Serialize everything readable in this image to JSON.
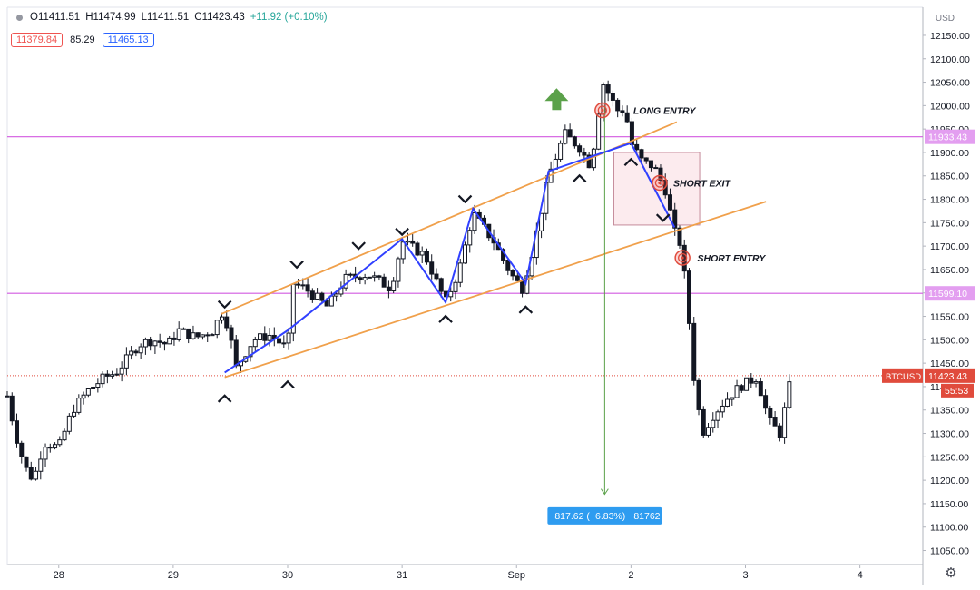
{
  "header": {
    "open": "O11411.51",
    "high": "H11474.99",
    "low": "L11411.51",
    "close": "C11423.43",
    "change": "+11.92 (+0.10%)"
  },
  "indicator": {
    "low_value": "11379.84",
    "mid_value": "85.29",
    "high_value": "11465.13"
  },
  "currency": "USD",
  "colors": {
    "up": "#26a69a",
    "down": "#ef5350",
    "candle": "#131722",
    "channel": "#f0a04b",
    "zigzag": "#3040ff",
    "level": "#d25ae0",
    "price_tag": "#e04b3c",
    "measure": "#2e9cf0",
    "arrow": "#5ba14a"
  },
  "chart_data": {
    "type": "candlestick",
    "symbol": "BTCUSD",
    "x_ticks": [
      {
        "label": "28",
        "day": 28
      },
      {
        "label": "29",
        "day": 29
      },
      {
        "label": "30",
        "day": 30
      },
      {
        "label": "31",
        "day": 31
      },
      {
        "label": "Sep",
        "day": 32
      },
      {
        "label": "2",
        "day": 33
      },
      {
        "label": "3",
        "day": 34
      },
      {
        "label": "4",
        "day": 35
      }
    ],
    "y_ticks": [
      11050,
      11100,
      11150,
      11200,
      11250,
      11300,
      11350,
      11400,
      11450,
      11500,
      11550,
      11600,
      11650,
      11700,
      11750,
      11800,
      11850,
      11900,
      11950,
      12000,
      12050,
      12100,
      12150
    ],
    "ylim": [
      11020,
      12210
    ],
    "current_price": {
      "label": "BTCUSD",
      "value": "11423.43",
      "countdown": "55:53",
      "price": 11423.43
    },
    "horizontal_levels": [
      {
        "value": "11933.43",
        "price": 11933.43
      },
      {
        "value": "11599.10",
        "price": 11599.1
      }
    ],
    "price_path": [
      [
        27.55,
        11380
      ],
      [
        27.62,
        11300
      ],
      [
        27.7,
        11230
      ],
      [
        27.78,
        11200
      ],
      [
        27.87,
        11280
      ],
      [
        28.0,
        11270
      ],
      [
        28.12,
        11350
      ],
      [
        28.25,
        11390
      ],
      [
        28.4,
        11420
      ],
      [
        28.5,
        11430
      ],
      [
        28.6,
        11460
      ],
      [
        28.7,
        11490
      ],
      [
        28.82,
        11500
      ],
      [
        28.95,
        11490
      ],
      [
        29.05,
        11520
      ],
      [
        29.2,
        11505
      ],
      [
        29.35,
        11520
      ],
      [
        29.42,
        11560
      ],
      [
        29.48,
        11530
      ],
      [
        29.55,
        11440
      ],
      [
        29.7,
        11500
      ],
      [
        29.85,
        11510
      ],
      [
        30.0,
        11480
      ],
      [
        30.05,
        11620
      ],
      [
        30.15,
        11610
      ],
      [
        30.35,
        11570
      ],
      [
        30.5,
        11630
      ],
      [
        30.7,
        11640
      ],
      [
        30.9,
        11610
      ],
      [
        31.0,
        11710
      ],
      [
        31.2,
        11680
      ],
      [
        31.38,
        11580
      ],
      [
        31.5,
        11650
      ],
      [
        31.62,
        11770
      ],
      [
        31.8,
        11710
      ],
      [
        31.95,
        11640
      ],
      [
        32.05,
        11610
      ],
      [
        32.15,
        11700
      ],
      [
        32.28,
        11850
      ],
      [
        32.42,
        11940
      ],
      [
        32.55,
        11910
      ],
      [
        32.65,
        11870
      ],
      [
        32.75,
        12050
      ],
      [
        32.88,
        11990
      ],
      [
        32.95,
        11990
      ],
      [
        33.0,
        11920
      ],
      [
        33.1,
        11880
      ],
      [
        33.2,
        11870
      ],
      [
        33.3,
        11820
      ],
      [
        33.38,
        11730
      ],
      [
        33.44,
        11700
      ],
      [
        33.5,
        11560
      ],
      [
        33.55,
        11420
      ],
      [
        33.62,
        11300
      ],
      [
        33.72,
        11340
      ],
      [
        33.82,
        11370
      ],
      [
        33.95,
        11400
      ],
      [
        34.1,
        11420
      ],
      [
        34.2,
        11330
      ],
      [
        34.3,
        11300
      ],
      [
        34.4,
        11420
      ]
    ],
    "channel_lines": [
      {
        "from": [
          29.42,
          11555
        ],
        "to": [
          33.4,
          11965
        ]
      },
      {
        "from": [
          29.45,
          11420
        ],
        "to": [
          34.18,
          11795
        ]
      }
    ],
    "zigzag": [
      [
        29.45,
        11430
      ],
      [
        30.0,
        11520
      ],
      [
        31.0,
        11715
      ],
      [
        31.38,
        11580
      ],
      [
        31.62,
        11780
      ],
      [
        32.08,
        11620
      ],
      [
        32.28,
        11860
      ],
      [
        33.0,
        11920
      ],
      [
        33.38,
        11740
      ]
    ],
    "swing_highs": [
      [
        29.45,
        11575
      ],
      [
        30.08,
        11660
      ],
      [
        30.62,
        11700
      ],
      [
        31.0,
        11730
      ],
      [
        31.55,
        11800
      ],
      [
        33.28,
        11760
      ]
    ],
    "swing_lows": [
      [
        29.45,
        11375
      ],
      [
        30.0,
        11405
      ],
      [
        31.38,
        11545
      ],
      [
        32.08,
        11565
      ],
      [
        32.55,
        11845
      ],
      [
        33.0,
        11880
      ]
    ],
    "target_zone": {
      "x": [
        32.85,
        33.6
      ],
      "y": [
        11745,
        11900
      ]
    },
    "bull_arrow": [
      32.35,
      12010
    ],
    "annotations": [
      {
        "text": "LONG ENTRY",
        "x": 33.02,
        "y": 11990,
        "marker_x": 32.75,
        "marker_y": 11990
      },
      {
        "text": "SHORT EXIT",
        "x": 33.37,
        "y": 11835,
        "marker_x": 33.25,
        "marker_y": 11835
      },
      {
        "text": "SHORT ENTRY",
        "x": 33.58,
        "y": 11675,
        "marker_x": 33.45,
        "marker_y": 11675
      }
    ],
    "measure": {
      "label": "−817.62 (−6.83%) −81762",
      "x": 32.77,
      "from": 12000,
      "to": 11170,
      "label_y": 11125
    }
  }
}
